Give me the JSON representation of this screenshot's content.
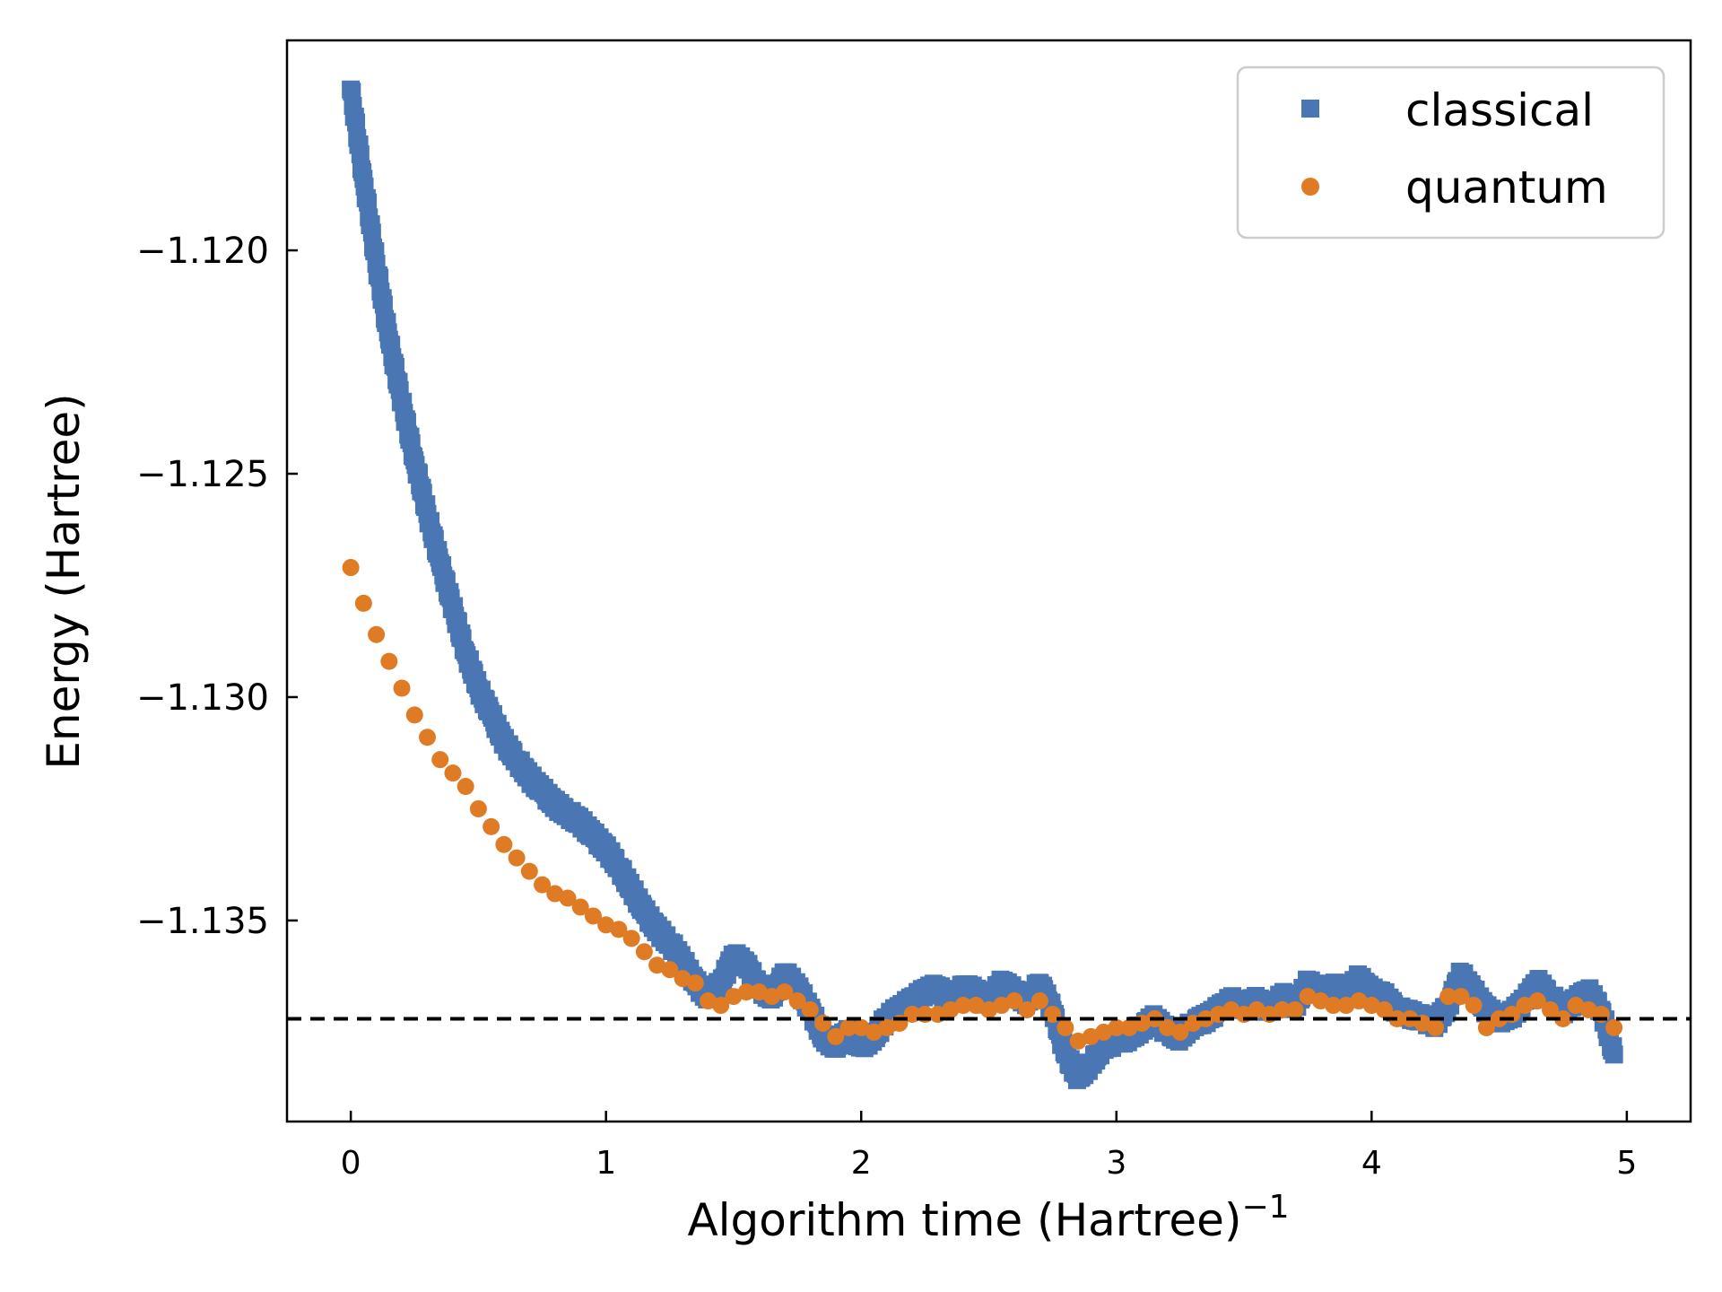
{
  "chart_data": {
    "type": "scatter",
    "xlabel": "Algorithm time (Hartree)",
    "xlabel_superscript": "−1",
    "ylabel": "Energy (Hartree)",
    "xlim": [
      -0.25,
      5.25
    ],
    "ylim": [
      -1.1395,
      -1.1153
    ],
    "x_ticks": [
      0,
      1,
      2,
      3,
      4,
      5
    ],
    "x_tick_labels": [
      "0",
      "1",
      "2",
      "3",
      "4",
      "5"
    ],
    "y_ticks": [
      -1.12,
      -1.125,
      -1.13,
      -1.135
    ],
    "y_tick_labels": [
      "−1.120",
      "−1.125",
      "−1.130",
      "−1.135"
    ],
    "grid": false,
    "legend_position": "top-right",
    "reference_line": {
      "y": -1.1372,
      "style": "dashed",
      "color": "#000000"
    },
    "series": [
      {
        "name": "classical",
        "marker": "square",
        "color": "#4a76b4",
        "dense": true,
        "x": [
          0.0,
          0.05,
          0.1,
          0.15,
          0.2,
          0.25,
          0.3,
          0.35,
          0.4,
          0.45,
          0.5,
          0.55,
          0.6,
          0.65,
          0.7,
          0.75,
          0.8,
          0.85,
          0.9,
          0.95,
          1.0,
          1.05,
          1.1,
          1.15,
          1.2,
          1.25,
          1.3,
          1.35,
          1.4,
          1.45,
          1.5,
          1.55,
          1.6,
          1.65,
          1.7,
          1.75,
          1.8,
          1.85,
          1.9,
          1.95,
          2.0,
          2.05,
          2.1,
          2.15,
          2.2,
          2.25,
          2.3,
          2.35,
          2.4,
          2.45,
          2.5,
          2.55,
          2.6,
          2.65,
          2.7,
          2.75,
          2.8,
          2.85,
          2.9,
          2.95,
          3.0,
          3.05,
          3.1,
          3.15,
          3.2,
          3.25,
          3.3,
          3.35,
          3.4,
          3.45,
          3.5,
          3.55,
          3.6,
          3.65,
          3.7,
          3.75,
          3.8,
          3.85,
          3.9,
          3.95,
          4.0,
          4.05,
          4.1,
          4.15,
          4.2,
          4.25,
          4.3,
          4.35,
          4.4,
          4.45,
          4.5,
          4.55,
          4.6,
          4.65,
          4.7,
          4.75,
          4.8,
          4.85,
          4.9,
          4.95
        ],
        "y": [
          -1.1164,
          -1.1184,
          -1.1203,
          -1.122,
          -1.1234,
          -1.1247,
          -1.1259,
          -1.127,
          -1.128,
          -1.129,
          -1.1298,
          -1.1304,
          -1.131,
          -1.1314,
          -1.1318,
          -1.1321,
          -1.1324,
          -1.1326,
          -1.1328,
          -1.1331,
          -1.1334,
          -1.1338,
          -1.1343,
          -1.1348,
          -1.1352,
          -1.1355,
          -1.1359,
          -1.1364,
          -1.1367,
          -1.1364,
          -1.1358,
          -1.136,
          -1.1365,
          -1.1367,
          -1.1362,
          -1.1365,
          -1.137,
          -1.1376,
          -1.1378,
          -1.1375,
          -1.1378,
          -1.1376,
          -1.1372,
          -1.137,
          -1.1368,
          -1.1366,
          -1.1365,
          -1.1368,
          -1.1365,
          -1.1366,
          -1.1368,
          -1.1364,
          -1.1366,
          -1.1368,
          -1.1364,
          -1.137,
          -1.138,
          -1.1385,
          -1.1382,
          -1.1378,
          -1.1377,
          -1.1376,
          -1.1374,
          -1.1372,
          -1.1375,
          -1.1376,
          -1.1373,
          -1.1372,
          -1.137,
          -1.1368,
          -1.1369,
          -1.1368,
          -1.137,
          -1.1367,
          -1.1369,
          -1.1364,
          -1.1366,
          -1.1365,
          -1.1366,
          -1.1363,
          -1.1366,
          -1.1367,
          -1.137,
          -1.1371,
          -1.1372,
          -1.1373,
          -1.1369,
          -1.1362,
          -1.1366,
          -1.137,
          -1.1372,
          -1.1371,
          -1.1368,
          -1.1364,
          -1.1367,
          -1.137,
          -1.1368,
          -1.1366,
          -1.137,
          -1.138
        ]
      },
      {
        "name": "quantum",
        "marker": "circle",
        "color": "#e07b25",
        "x": [
          0.0,
          0.05,
          0.1,
          0.15,
          0.2,
          0.25,
          0.3,
          0.35,
          0.4,
          0.45,
          0.5,
          0.55,
          0.6,
          0.65,
          0.7,
          0.75,
          0.8,
          0.85,
          0.9,
          0.95,
          1.0,
          1.05,
          1.1,
          1.15,
          1.2,
          1.25,
          1.3,
          1.35,
          1.4,
          1.45,
          1.5,
          1.55,
          1.6,
          1.65,
          1.7,
          1.75,
          1.8,
          1.85,
          1.9,
          1.95,
          2.0,
          2.05,
          2.1,
          2.15,
          2.2,
          2.25,
          2.3,
          2.35,
          2.4,
          2.45,
          2.5,
          2.55,
          2.6,
          2.65,
          2.7,
          2.75,
          2.8,
          2.85,
          2.9,
          2.95,
          3.0,
          3.05,
          3.1,
          3.15,
          3.2,
          3.25,
          3.3,
          3.35,
          3.4,
          3.45,
          3.5,
          3.55,
          3.6,
          3.65,
          3.7,
          3.75,
          3.8,
          3.85,
          3.9,
          3.95,
          4.0,
          4.05,
          4.1,
          4.15,
          4.2,
          4.25,
          4.3,
          4.35,
          4.4,
          4.45,
          4.5,
          4.55,
          4.6,
          4.65,
          4.7,
          4.75,
          4.8,
          4.85,
          4.9,
          4.95
        ],
        "y": [
          -1.1271,
          -1.1279,
          -1.1286,
          -1.1292,
          -1.1298,
          -1.1304,
          -1.1309,
          -1.1314,
          -1.1317,
          -1.132,
          -1.1325,
          -1.1329,
          -1.1333,
          -1.1336,
          -1.1339,
          -1.1342,
          -1.1344,
          -1.1345,
          -1.1347,
          -1.1349,
          -1.1351,
          -1.1352,
          -1.1354,
          -1.1357,
          -1.136,
          -1.1361,
          -1.1363,
          -1.1364,
          -1.1368,
          -1.1369,
          -1.1367,
          -1.1366,
          -1.1366,
          -1.1367,
          -1.1366,
          -1.1368,
          -1.137,
          -1.1373,
          -1.1376,
          -1.1374,
          -1.1374,
          -1.1375,
          -1.1374,
          -1.1373,
          -1.1371,
          -1.1371,
          -1.1371,
          -1.137,
          -1.1369,
          -1.1369,
          -1.137,
          -1.1369,
          -1.1368,
          -1.137,
          -1.1368,
          -1.1371,
          -1.1374,
          -1.1377,
          -1.1376,
          -1.1375,
          -1.1374,
          -1.1374,
          -1.1373,
          -1.1372,
          -1.1374,
          -1.1375,
          -1.1373,
          -1.1372,
          -1.1371,
          -1.137,
          -1.1371,
          -1.137,
          -1.1371,
          -1.137,
          -1.137,
          -1.1367,
          -1.1368,
          -1.1369,
          -1.1369,
          -1.1368,
          -1.1369,
          -1.137,
          -1.1372,
          -1.1372,
          -1.1373,
          -1.1374,
          -1.1367,
          -1.1367,
          -1.1369,
          -1.1374,
          -1.1372,
          -1.1371,
          -1.1369,
          -1.1368,
          -1.137,
          -1.1372,
          -1.1369,
          -1.137,
          -1.1371,
          -1.1374
        ]
      }
    ]
  }
}
